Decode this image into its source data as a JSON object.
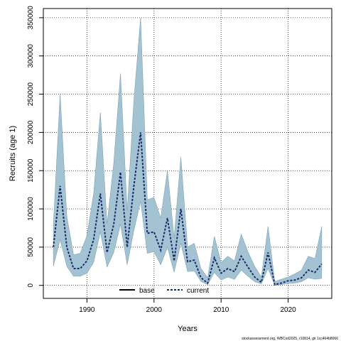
{
  "chart_data": {
    "type": "area",
    "xlabel": "Years",
    "ylabel": "Recruits (age 1)",
    "xlim": [
      1983.5,
      2026.5
    ],
    "ylim": [
      -17000,
      362000
    ],
    "x_ticks": [
      1990,
      2000,
      2010,
      2020
    ],
    "y_ticks": [
      0,
      50000,
      100000,
      150000,
      200000,
      250000,
      300000,
      350000
    ],
    "grid": true,
    "legend": {
      "placement": "bottom-center",
      "entries": [
        "base",
        "current"
      ]
    },
    "colors": {
      "band_fill": "#a4c3d2",
      "band_edge": "#7fa4b8",
      "current_line": "#1a2a6b",
      "base_line": "#000000",
      "grid": "#000000"
    },
    "years": [
      1985,
      1986,
      1987,
      1988,
      1989,
      1990,
      1991,
      1992,
      1993,
      1994,
      1995,
      1996,
      1997,
      1998,
      1999,
      2000,
      2001,
      2002,
      2003,
      2004,
      2005,
      2006,
      2007,
      2008,
      2009,
      2010,
      2011,
      2012,
      2013,
      2014,
      2015,
      2016,
      2017,
      2018,
      2019,
      2020,
      2021,
      2022,
      2023,
      2024,
      2025
    ],
    "series": [
      {
        "name": "current",
        "values": [
          50000,
          130000,
          50000,
          22000,
          22000,
          32000,
          60000,
          120000,
          43000,
          80000,
          148000,
          50000,
          130000,
          200000,
          68000,
          70000,
          46000,
          88000,
          32000,
          100000,
          31000,
          33000,
          10000,
          3000,
          36000,
          16000,
          22000,
          18000,
          38000,
          24000,
          11000,
          4000,
          43000,
          1000,
          3000,
          6000,
          7000,
          10000,
          20000,
          17000,
          28000
        ]
      },
      {
        "name": "upper",
        "values": [
          80000,
          250000,
          90000,
          40000,
          42000,
          65000,
          120000,
          226000,
          80000,
          160000,
          277000,
          97000,
          242000,
          350000,
          112000,
          115000,
          88000,
          150000,
          62000,
          168000,
          50000,
          55000,
          22000,
          10000,
          64000,
          30000,
          38000,
          32000,
          67000,
          44000,
          25000,
          11000,
          77000,
          5000,
          8000,
          11000,
          15000,
          20000,
          38000,
          35000,
          77000
        ]
      },
      {
        "name": "lower",
        "values": [
          25000,
          60000,
          25000,
          12000,
          12000,
          16000,
          30000,
          70000,
          24000,
          43000,
          80000,
          27000,
          72000,
          110000,
          42000,
          44000,
          27000,
          50000,
          17000,
          55000,
          18000,
          19000,
          5000,
          1000,
          17000,
          7000,
          11000,
          8000,
          20000,
          12000,
          5000,
          2000,
          22000,
          300,
          1000,
          2500,
          3000,
          5000,
          10000,
          8000,
          9000
        ]
      }
    ]
  },
  "footer": "stockassessment.org, WBCod2025, r10814, git 1cc464b8066"
}
